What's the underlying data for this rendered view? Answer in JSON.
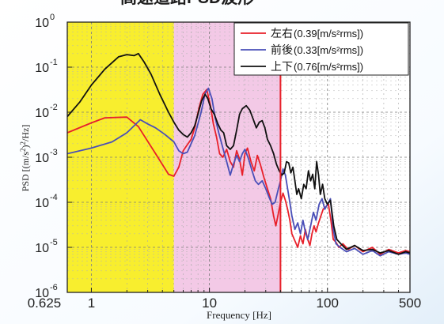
{
  "chart_data": {
    "type": "line",
    "title": "高速道路PSD波形",
    "xlabel": "Frequency [Hz]",
    "ylabel": "PSD [(m/s²)²/Hz]",
    "x_scale": "log",
    "y_scale": "log",
    "xlim": [
      0.625,
      500
    ],
    "ylim": [
      1e-06,
      1
    ],
    "x_tick_labels": [
      {
        "value": 0.625,
        "label": "0.625"
      },
      {
        "value": 1,
        "label": "1"
      },
      {
        "value": 10,
        "label": "10"
      },
      {
        "value": 100,
        "label": "100"
      },
      {
        "value": 500,
        "label": "500"
      }
    ],
    "y_tick_labels": [
      {
        "value": 1,
        "base": "10",
        "exp": "0"
      },
      {
        "value": 0.1,
        "base": "10",
        "exp": "-1"
      },
      {
        "value": 0.01,
        "base": "10",
        "exp": "-2"
      },
      {
        "value": 0.001,
        "base": "10",
        "exp": "-3"
      },
      {
        "value": 0.0001,
        "base": "10",
        "exp": "-4"
      },
      {
        "value": 1e-05,
        "base": "10",
        "exp": "-5"
      },
      {
        "value": 1e-06,
        "base": "10",
        "exp": "-6"
      }
    ],
    "grid": true,
    "legend_position": "top-right",
    "frequency_bands": [
      {
        "from": 0.625,
        "to": 5,
        "color": "#f8ee2e"
      },
      {
        "from": 5,
        "to": 40,
        "color": "#f3c9e6"
      }
    ],
    "marker_line": {
      "x": 40,
      "color": "#e8202a"
    },
    "series": [
      {
        "name": "左右",
        "value_text": "(0.39[m/s²rms])",
        "color": "#e8202a",
        "points": [
          [
            0.625,
            0.0035
          ],
          [
            1.0,
            0.0058
          ],
          [
            1.3,
            0.0075
          ],
          [
            2.0,
            0.0078
          ],
          [
            2.5,
            0.0048
          ],
          [
            3.5,
            0.0012
          ],
          [
            4.5,
            0.00042
          ],
          [
            5.0,
            0.00038
          ],
          [
            5.5,
            0.0006
          ],
          [
            6.0,
            0.0014
          ],
          [
            6.5,
            0.0019
          ],
          [
            7.0,
            0.0025
          ],
          [
            7.5,
            0.0045
          ],
          [
            8.2,
            0.013
          ],
          [
            8.8,
            0.025
          ],
          [
            9.5,
            0.032
          ],
          [
            10.2,
            0.014
          ],
          [
            10.8,
            0.0055
          ],
          [
            11.5,
            0.0028
          ],
          [
            12.2,
            0.0012
          ],
          [
            13.0,
            0.001
          ],
          [
            14.0,
            0.0015
          ],
          [
            15.0,
            0.0008
          ],
          [
            16.0,
            0.0006
          ],
          [
            17.0,
            0.0014
          ],
          [
            18.0,
            0.0009
          ],
          [
            19.0,
            0.0004
          ],
          [
            20.0,
            0.0012
          ],
          [
            21.0,
            0.0016
          ],
          [
            22.5,
            0.0008
          ],
          [
            24.0,
            0.0005
          ],
          [
            25.5,
            0.0011
          ],
          [
            27.0,
            0.0007
          ],
          [
            29.0,
            0.00035
          ],
          [
            31.0,
            0.0002
          ],
          [
            33.0,
            0.00012
          ],
          [
            35.0,
            5e-05
          ],
          [
            36.5,
            3e-05
          ],
          [
            38.0,
            5e-05
          ],
          [
            40.0,
            0.0001
          ],
          [
            42.0,
            0.00016
          ],
          [
            44.0,
            0.00011
          ],
          [
            46.0,
            7e-05
          ],
          [
            48.0,
            4e-05
          ],
          [
            50.0,
            2e-05
          ],
          [
            53.0,
            1.4e-05
          ],
          [
            56.0,
            1e-05
          ],
          [
            59.0,
            1.8e-05
          ],
          [
            62.0,
            1.2e-05
          ],
          [
            65.0,
            2.5e-05
          ],
          [
            68.0,
            1.5e-05
          ],
          [
            71.0,
            1.1e-05
          ],
          [
            74.0,
            2e-05
          ],
          [
            77.0,
            3e-05
          ],
          [
            80.0,
            2.2e-05
          ],
          [
            84.0,
            3.5e-05
          ],
          [
            88.0,
            5e-05
          ],
          [
            92.0,
            7e-05
          ],
          [
            97.0,
            8e-05
          ],
          [
            102.0,
            9e-05
          ],
          [
            107.0,
            4e-05
          ],
          [
            112.0,
            1.5e-05
          ],
          [
            118.0,
            1.3e-05
          ],
          [
            125.0,
            1e-05
          ],
          [
            135.0,
            1.2e-05
          ],
          [
            150.0,
            9e-06
          ],
          [
            170.0,
            1.1e-05
          ],
          [
            200.0,
            8e-06
          ],
          [
            240.0,
            1e-05
          ],
          [
            280.0,
            7e-06
          ],
          [
            330.0,
            9e-06
          ],
          [
            400.0,
            7.5e-06
          ],
          [
            460.0,
            8.5e-06
          ],
          [
            500.0,
            8e-06
          ]
        ]
      },
      {
        "name": "前後",
        "value_text": "(0.33[m/s²rms])",
        "color": "#4a4fb8",
        "points": [
          [
            0.625,
            0.0012
          ],
          [
            1.0,
            0.0016
          ],
          [
            1.5,
            0.0022
          ],
          [
            2.0,
            0.0035
          ],
          [
            2.6,
            0.0068
          ],
          [
            3.0,
            0.0055
          ],
          [
            3.5,
            0.0045
          ],
          [
            4.2,
            0.0032
          ],
          [
            5.0,
            0.0022
          ],
          [
            5.5,
            0.0014
          ],
          [
            6.0,
            0.0012
          ],
          [
            6.5,
            0.0013
          ],
          [
            7.0,
            0.002
          ],
          [
            7.5,
            0.003
          ],
          [
            8.0,
            0.0055
          ],
          [
            8.5,
            0.01
          ],
          [
            9.2,
            0.026
          ],
          [
            9.8,
            0.034
          ],
          [
            10.5,
            0.02
          ],
          [
            11.2,
            0.0075
          ],
          [
            12.0,
            0.0035
          ],
          [
            13.0,
            0.0016
          ],
          [
            14.0,
            0.0008
          ],
          [
            15.0,
            0.0004
          ],
          [
            16.0,
            0.0007
          ],
          [
            17.0,
            0.0011
          ],
          [
            18.0,
            0.0008
          ],
          [
            19.0,
            0.0012
          ],
          [
            20.0,
            0.0015
          ],
          [
            21.5,
            0.0009
          ],
          [
            23.0,
            0.0005
          ],
          [
            24.5,
            0.0003
          ],
          [
            26.0,
            0.00025
          ],
          [
            28.0,
            0.0003
          ],
          [
            30.0,
            0.0002
          ],
          [
            32.0,
            0.00013
          ],
          [
            34.0,
            9e-05
          ],
          [
            36.0,
            0.0001
          ],
          [
            38.0,
            0.00018
          ],
          [
            40.0,
            0.0003
          ],
          [
            42.0,
            0.00055
          ],
          [
            44.0,
            0.0004
          ],
          [
            46.0,
            0.0002
          ],
          [
            48.0,
            0.0001
          ],
          [
            50.0,
            5e-05
          ],
          [
            53.0,
            2.5e-05
          ],
          [
            56.0,
            3.5e-05
          ],
          [
            59.0,
            2e-05
          ],
          [
            62.0,
            4e-05
          ],
          [
            65.0,
            2.2e-05
          ],
          [
            68.0,
            1.5e-05
          ],
          [
            72.0,
            3e-05
          ],
          [
            76.0,
            6e-05
          ],
          [
            80.0,
            4e-05
          ],
          [
            85.0,
            9e-05
          ],
          [
            90.0,
            0.00012
          ],
          [
            95.0,
            7e-05
          ],
          [
            100.0,
            9e-05
          ],
          [
            106.0,
            0.00012
          ],
          [
            112.0,
            2.5e-05
          ],
          [
            118.0,
            1.2e-05
          ],
          [
            128.0,
            1e-05
          ],
          [
            145.0,
            8e-06
          ],
          [
            170.0,
            9.5e-06
          ],
          [
            200.0,
            7e-06
          ],
          [
            240.0,
            8.5e-06
          ],
          [
            280.0,
            6.5e-06
          ],
          [
            330.0,
            8e-06
          ],
          [
            400.0,
            7e-06
          ],
          [
            460.0,
            7.5e-06
          ],
          [
            500.0,
            7e-06
          ]
        ]
      },
      {
        "name": "上下",
        "value_text": "(0.76[m/s²rms])",
        "color": "#111111",
        "points": [
          [
            0.625,
            0.008
          ],
          [
            0.8,
            0.017
          ],
          [
            1.0,
            0.04
          ],
          [
            1.3,
            0.09
          ],
          [
            1.7,
            0.17
          ],
          [
            2.0,
            0.19
          ],
          [
            2.3,
            0.18
          ],
          [
            2.5,
            0.2
          ],
          [
            2.8,
            0.13
          ],
          [
            3.2,
            0.07
          ],
          [
            3.8,
            0.025
          ],
          [
            4.5,
            0.01
          ],
          [
            5.0,
            0.006
          ],
          [
            5.5,
            0.004
          ],
          [
            6.0,
            0.0032
          ],
          [
            6.5,
            0.0028
          ],
          [
            7.0,
            0.0035
          ],
          [
            7.5,
            0.005
          ],
          [
            8.0,
            0.009
          ],
          [
            8.6,
            0.018
          ],
          [
            9.2,
            0.025
          ],
          [
            9.7,
            0.02
          ],
          [
            10.3,
            0.012
          ],
          [
            11.0,
            0.009
          ],
          [
            11.8,
            0.0055
          ],
          [
            12.5,
            0.004
          ],
          [
            13.2,
            0.0035
          ],
          [
            14.0,
            0.0018
          ],
          [
            15.0,
            0.0015
          ],
          [
            16.0,
            0.0018
          ],
          [
            17.0,
            0.004
          ],
          [
            18.0,
            0.009
          ],
          [
            19.0,
            0.012
          ],
          [
            20.5,
            0.014
          ],
          [
            22.0,
            0.011
          ],
          [
            23.5,
            0.007
          ],
          [
            25.0,
            0.0045
          ],
          [
            26.5,
            0.006
          ],
          [
            28.0,
            0.0065
          ],
          [
            29.5,
            0.0045
          ],
          [
            31.0,
            0.0025
          ],
          [
            33.0,
            0.0018
          ],
          [
            35.0,
            0.0012
          ],
          [
            37.0,
            0.0007
          ],
          [
            39.0,
            0.0005
          ],
          [
            41.0,
            0.0004
          ],
          [
            43.0,
            0.00045
          ],
          [
            45.0,
            0.0008
          ],
          [
            47.0,
            0.00075
          ],
          [
            49.0,
            0.00045
          ],
          [
            51.0,
            0.0006
          ],
          [
            53.0,
            0.0003
          ],
          [
            55.0,
            0.00015
          ],
          [
            57.0,
            0.0002
          ],
          [
            60.0,
            0.00012
          ],
          [
            63.0,
            0.00025
          ],
          [
            66.0,
            0.0002
          ],
          [
            69.0,
            0.0005
          ],
          [
            72.0,
            0.0003
          ],
          [
            75.0,
            0.00042
          ],
          [
            78.0,
            0.0002
          ],
          [
            81.0,
            0.0008
          ],
          [
            84.0,
            0.0004
          ],
          [
            87.0,
            0.00015
          ],
          [
            91.0,
            0.00025
          ],
          [
            95.0,
            0.00012
          ],
          [
            100.0,
            9e-05
          ],
          [
            106.0,
            0.00011
          ],
          [
            113.0,
            3e-05
          ],
          [
            120.0,
            1.5e-05
          ],
          [
            130.0,
            1.2e-05
          ],
          [
            145.0,
            9e-06
          ],
          [
            170.0,
            1.1e-05
          ],
          [
            200.0,
            8.5e-06
          ],
          [
            240.0,
            9e-06
          ],
          [
            280.0,
            7.5e-06
          ],
          [
            330.0,
            8.5e-06
          ],
          [
            400.0,
            7e-06
          ],
          [
            460.0,
            8e-06
          ],
          [
            500.0,
            7.5e-06
          ]
        ]
      }
    ]
  }
}
